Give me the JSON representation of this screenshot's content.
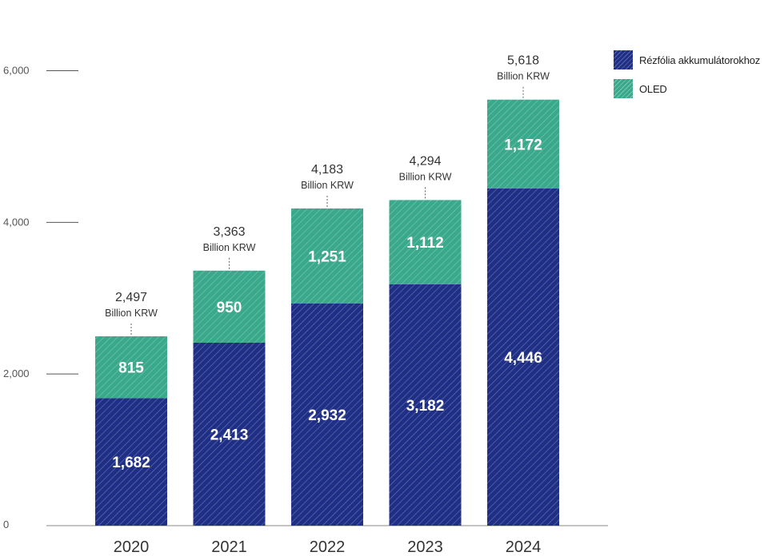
{
  "chart_data": {
    "type": "bar",
    "stacked": true,
    "categories": [
      "2020",
      "2021",
      "2022",
      "2023",
      "2024"
    ],
    "series": [
      {
        "name": "Rézfólia akkumulátorokhoz",
        "color": "#1f2f86",
        "values": [
          1682,
          2413,
          2932,
          3182,
          4446
        ]
      },
      {
        "name": "OLED",
        "color": "#3aa98b",
        "values": [
          815,
          950,
          1251,
          1112,
          1172
        ]
      }
    ],
    "totals": [
      {
        "value": "2,497",
        "unit": "Billion KRW"
      },
      {
        "value": "3,363",
        "unit": "Billion KRW"
      },
      {
        "value": "4,183",
        "unit": "Billion KRW"
      },
      {
        "value": "4,294",
        "unit": "Billion KRW"
      },
      {
        "value": "5,618",
        "unit": "Billion KRW"
      }
    ],
    "y_ticks": [
      {
        "value": 0,
        "label": "0"
      },
      {
        "value": 2000,
        "label": "2,000"
      },
      {
        "value": 4000,
        "label": "4,000"
      },
      {
        "value": 6000,
        "label": "6,000"
      }
    ],
    "ylim": [
      0,
      6300
    ],
    "legend_position": "top-right",
    "bar_pattern": "diagonal-hatch"
  }
}
